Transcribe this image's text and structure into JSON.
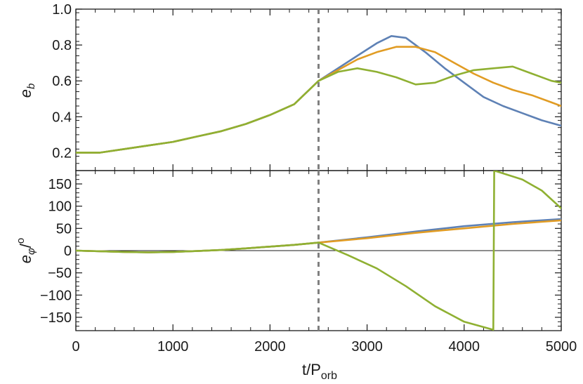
{
  "chart_data": [
    {
      "type": "line",
      "panel": "top",
      "ylabel": {
        "base": "e",
        "sub": "b"
      },
      "xlim": [
        0,
        5000
      ],
      "ylim": [
        0.1,
        1.0
      ],
      "yticks": [
        0.2,
        0.4,
        0.6,
        0.8,
        1.0
      ],
      "ytick_labels": [
        "0.2",
        "0.4",
        "0.6",
        "0.8",
        "1.0"
      ],
      "vline_x": 2500,
      "series": [
        {
          "color": "#5e81b5",
          "x": [
            0,
            250,
            500,
            750,
            1000,
            1250,
            1500,
            1750,
            2000,
            2250,
            2500,
            2700,
            2900,
            3100,
            3250,
            3400,
            3600,
            3800,
            4000,
            4200,
            4400,
            4600,
            4800,
            5000
          ],
          "y": [
            0.2,
            0.2,
            0.22,
            0.24,
            0.26,
            0.29,
            0.32,
            0.36,
            0.41,
            0.47,
            0.6,
            0.67,
            0.74,
            0.81,
            0.85,
            0.84,
            0.76,
            0.67,
            0.59,
            0.51,
            0.46,
            0.42,
            0.38,
            0.35
          ]
        },
        {
          "color": "#e19c24",
          "x": [
            0,
            250,
            500,
            750,
            1000,
            1250,
            1500,
            1750,
            2000,
            2250,
            2500,
            2700,
            2900,
            3100,
            3300,
            3500,
            3700,
            3900,
            4100,
            4300,
            4500,
            4700,
            4900,
            5000
          ],
          "y": [
            0.2,
            0.2,
            0.22,
            0.24,
            0.26,
            0.29,
            0.32,
            0.36,
            0.41,
            0.47,
            0.6,
            0.66,
            0.72,
            0.76,
            0.79,
            0.79,
            0.76,
            0.7,
            0.64,
            0.59,
            0.55,
            0.52,
            0.48,
            0.46
          ]
        },
        {
          "color": "#8fb032",
          "x": [
            0,
            250,
            500,
            750,
            1000,
            1250,
            1500,
            1750,
            2000,
            2250,
            2500,
            2700,
            2900,
            3100,
            3300,
            3500,
            3700,
            3900,
            4100,
            4300,
            4500,
            4700,
            4900,
            5000
          ],
          "y": [
            0.2,
            0.2,
            0.22,
            0.24,
            0.26,
            0.29,
            0.32,
            0.36,
            0.41,
            0.47,
            0.6,
            0.65,
            0.67,
            0.65,
            0.62,
            0.58,
            0.59,
            0.63,
            0.66,
            0.67,
            0.68,
            0.64,
            0.6,
            0.59
          ]
        }
      ]
    },
    {
      "type": "line",
      "panel": "bottom",
      "ylabel": {
        "base": "e",
        "sub": "φ",
        "suffix": "/",
        "sup": "o"
      },
      "xlabel": {
        "base": "t/P",
        "sub": "orb"
      },
      "xlim": [
        0,
        5000
      ],
      "ylim": [
        -180,
        180
      ],
      "yticks": [
        -150,
        -100,
        -50,
        0,
        50,
        100,
        150
      ],
      "ytick_labels": [
        "−150",
        "−100",
        "−50",
        "0",
        "50",
        "100",
        "150"
      ],
      "xticks": [
        0,
        1000,
        2000,
        3000,
        4000,
        5000
      ],
      "xtick_labels": [
        "0",
        "1000",
        "2000",
        "3000",
        "4000",
        "5000"
      ],
      "hline_y": 0,
      "vline_x": 2500,
      "series": [
        {
          "color": "#5e81b5",
          "x": [
            0,
            250,
            500,
            750,
            1000,
            1250,
            1500,
            1750,
            2000,
            2250,
            2500,
            3000,
            3500,
            4000,
            4500,
            5000
          ],
          "y": [
            0,
            -1.5,
            -3,
            -4,
            -3,
            -1,
            1.5,
            5,
            9,
            13,
            18,
            30,
            43,
            55,
            64,
            71
          ]
        },
        {
          "color": "#e19c24",
          "x": [
            0,
            250,
            500,
            750,
            1000,
            1250,
            1500,
            1750,
            2000,
            2250,
            2500,
            3000,
            3500,
            4000,
            4500,
            5000
          ],
          "y": [
            0,
            -1.5,
            -3,
            -4,
            -3,
            -1,
            1.5,
            5,
            9,
            13,
            18,
            28,
            40,
            50,
            60,
            68
          ]
        },
        {
          "color": "#8fb032",
          "x": [
            0,
            250,
            500,
            750,
            1000,
            1250,
            1500,
            1750,
            2000,
            2250,
            2500,
            2800,
            3100,
            3400,
            3700,
            4000,
            4300,
            4310,
            4600,
            4800,
            5000
          ],
          "y": [
            0,
            -1.5,
            -3,
            -4,
            -3,
            -1,
            1.5,
            5,
            9,
            13,
            18,
            -10,
            -40,
            -80,
            -125,
            -160,
            -178,
            180,
            160,
            135,
            95
          ]
        }
      ]
    }
  ]
}
